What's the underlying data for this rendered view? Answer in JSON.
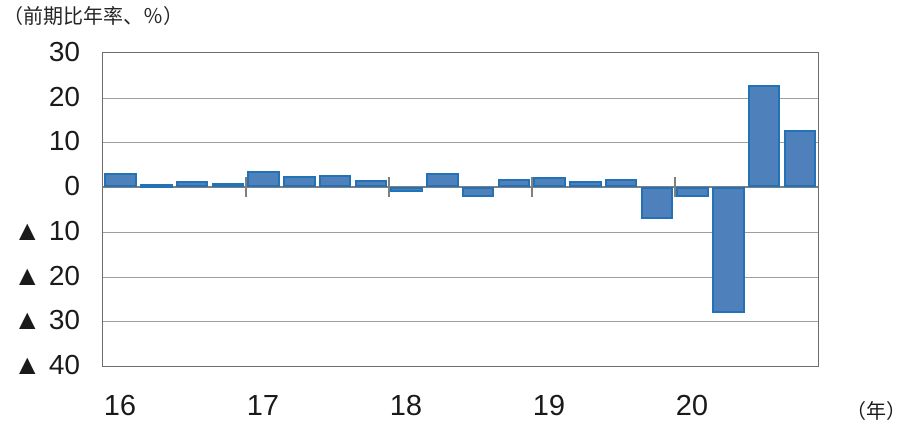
{
  "chart_data": {
    "type": "bar",
    "title": "（前期比年率、％）",
    "x_axis_unit_label": "（年）",
    "categories": [
      "16Q1",
      "16Q2",
      "16Q3",
      "16Q4",
      "17Q1",
      "17Q2",
      "17Q3",
      "17Q4",
      "18Q1",
      "18Q2",
      "18Q3",
      "18Q4",
      "19Q1",
      "19Q2",
      "19Q3",
      "19Q4",
      "20Q1",
      "20Q2",
      "20Q3",
      "20Q4"
    ],
    "values": [
      3.2,
      0.6,
      1.4,
      1.0,
      3.5,
      2.4,
      2.7,
      1.6,
      -1.0,
      3.2,
      -2.3,
      1.9,
      2.2,
      1.4,
      1.9,
      -7.2,
      -2.2,
      -28.1,
      22.9,
      12.7
    ],
    "year_labels": [
      "16",
      "17",
      "18",
      "19",
      "20"
    ],
    "ylim": [
      -40,
      30
    ],
    "y_ticks": [
      {
        "value": 30,
        "label": "30"
      },
      {
        "value": 20,
        "label": "20"
      },
      {
        "value": 10,
        "label": "10"
      },
      {
        "value": 0,
        "label": "0"
      },
      {
        "value": -10,
        "label": "▲ 10"
      },
      {
        "value": -20,
        "label": "▲ 20"
      },
      {
        "value": -30,
        "label": "▲ 30"
      },
      {
        "value": -40,
        "label": "▲ 40"
      }
    ],
    "grid": "horizontal",
    "legend": "none",
    "colors": {
      "bar_fill": "#4e80bc",
      "bar_border": "#2272b5",
      "gridline": "#9e9e9e",
      "axis": "#7f7f7f",
      "text": "#1a1a1a"
    }
  }
}
